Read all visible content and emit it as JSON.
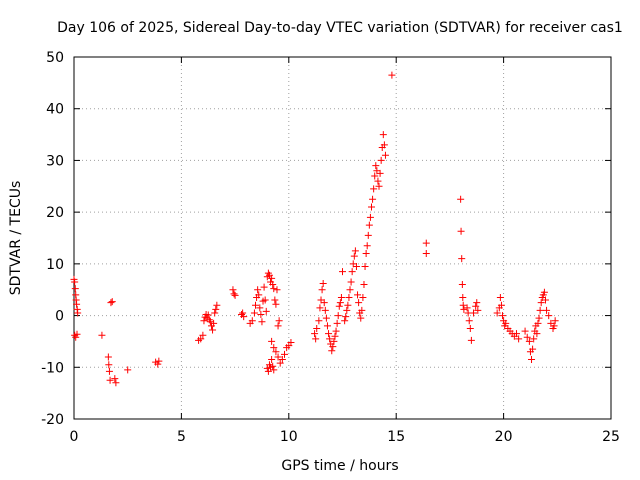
{
  "chart_data": {
    "type": "scatter",
    "title": "Day 106 of 2025, Sidereal Day-to-day VTEC variation (SDTVAR) for receiver cas1",
    "xlabel": "GPS time / hours",
    "ylabel": "SDTVAR / TECUs",
    "xlim": [
      0,
      25
    ],
    "ylim": [
      -20,
      50
    ],
    "grid": true,
    "marker": "plus",
    "color": "#ff0000",
    "x_ticks": [
      {
        "value": 0,
        "label": "0"
      },
      {
        "value": 5,
        "label": "5"
      },
      {
        "value": 10,
        "label": "10"
      },
      {
        "value": 15,
        "label": "15"
      },
      {
        "value": 20,
        "label": "20"
      },
      {
        "value": 25,
        "label": "25"
      }
    ],
    "y_ticks": [
      {
        "value": -20,
        "label": "-20"
      },
      {
        "value": -10,
        "label": "-10"
      },
      {
        "value": 0,
        "label": "0"
      },
      {
        "value": 10,
        "label": "10"
      },
      {
        "value": 20,
        "label": "20"
      },
      {
        "value": 30,
        "label": "30"
      },
      {
        "value": 40,
        "label": "40"
      },
      {
        "value": 50,
        "label": "50"
      }
    ],
    "series": [
      {
        "name": "cas1",
        "points": [
          [
            0.0,
            7.0
          ],
          [
            0.03,
            6.5
          ],
          [
            0.06,
            5.2
          ],
          [
            0.08,
            4.0
          ],
          [
            0.1,
            3.0
          ],
          [
            0.12,
            2.2
          ],
          [
            0.15,
            1.2
          ],
          [
            0.17,
            0.5
          ],
          [
            0.03,
            -3.8
          ],
          [
            0.08,
            -4.2
          ],
          [
            0.14,
            -3.6
          ],
          [
            1.3,
            -3.8
          ],
          [
            1.6,
            -8.0
          ],
          [
            1.62,
            -9.5
          ],
          [
            1.65,
            -10.8
          ],
          [
            1.68,
            -12.5
          ],
          [
            1.72,
            2.5
          ],
          [
            1.78,
            2.7
          ],
          [
            1.9,
            -12.2
          ],
          [
            1.95,
            -13.0
          ],
          [
            2.5,
            -10.5
          ],
          [
            3.8,
            -9.0
          ],
          [
            3.9,
            -9.4
          ],
          [
            3.95,
            -8.8
          ],
          [
            5.8,
            -4.8
          ],
          [
            5.9,
            -4.5
          ],
          [
            6.0,
            -3.8
          ],
          [
            6.05,
            -1.0
          ],
          [
            6.1,
            -0.3
          ],
          [
            6.15,
            0.2
          ],
          [
            6.2,
            -0.5
          ],
          [
            6.25,
            0.1
          ],
          [
            6.3,
            -0.8
          ],
          [
            6.35,
            -1.2
          ],
          [
            6.4,
            -2.0
          ],
          [
            6.45,
            -2.8
          ],
          [
            6.5,
            -1.5
          ],
          [
            6.55,
            0.5
          ],
          [
            6.6,
            1.2
          ],
          [
            6.65,
            2.0
          ],
          [
            7.4,
            5.0
          ],
          [
            7.45,
            4.2
          ],
          [
            7.5,
            3.9
          ],
          [
            7.8,
            0.2
          ],
          [
            7.9,
            -0.2
          ],
          [
            7.85,
            0.5
          ],
          [
            8.2,
            -1.5
          ],
          [
            8.3,
            -1.0
          ],
          [
            8.4,
            0.5
          ],
          [
            8.45,
            2.0
          ],
          [
            8.5,
            3.5
          ],
          [
            8.55,
            5.0
          ],
          [
            8.6,
            4.0
          ],
          [
            8.65,
            1.5
          ],
          [
            8.7,
            0.2
          ],
          [
            8.75,
            -1.2
          ],
          [
            8.8,
            2.8
          ],
          [
            8.85,
            5.5
          ],
          [
            8.9,
            3.0
          ],
          [
            8.95,
            0.8
          ],
          [
            9.0,
            7.5
          ],
          [
            9.05,
            8.2
          ],
          [
            9.1,
            7.8
          ],
          [
            9.15,
            6.5
          ],
          [
            9.2,
            7.2
          ],
          [
            9.25,
            6.0
          ],
          [
            9.3,
            5.2
          ],
          [
            9.35,
            3.0
          ],
          [
            9.4,
            2.2
          ],
          [
            9.45,
            5.0
          ],
          [
            9.0,
            -10.2
          ],
          [
            9.05,
            -10.8
          ],
          [
            9.1,
            -9.5
          ],
          [
            9.15,
            -10.0
          ],
          [
            9.2,
            -8.5
          ],
          [
            9.25,
            -9.8
          ],
          [
            9.3,
            -10.5
          ],
          [
            9.2,
            -5.0
          ],
          [
            9.3,
            -6.2
          ],
          [
            9.4,
            -7.0
          ],
          [
            9.5,
            -8.0
          ],
          [
            9.6,
            -9.2
          ],
          [
            9.7,
            -8.5
          ],
          [
            9.8,
            -7.5
          ],
          [
            9.9,
            -6.2
          ],
          [
            10.0,
            -5.8
          ],
          [
            10.1,
            -5.2
          ],
          [
            9.5,
            -2.0
          ],
          [
            9.55,
            -1.0
          ],
          [
            11.2,
            -3.5
          ],
          [
            11.25,
            -4.5
          ],
          [
            11.3,
            -2.5
          ],
          [
            11.4,
            -1.0
          ],
          [
            11.45,
            1.5
          ],
          [
            11.5,
            3.0
          ],
          [
            11.55,
            5.0
          ],
          [
            11.6,
            6.2
          ],
          [
            11.65,
            2.5
          ],
          [
            11.7,
            1.0
          ],
          [
            11.75,
            -0.5
          ],
          [
            11.8,
            -2.0
          ],
          [
            11.85,
            -3.5
          ],
          [
            11.9,
            -4.5
          ],
          [
            11.95,
            -5.5
          ],
          [
            12.0,
            -6.8
          ],
          [
            12.05,
            -6.0
          ],
          [
            12.1,
            -5.0
          ],
          [
            12.15,
            -4.0
          ],
          [
            12.2,
            -3.0
          ],
          [
            12.25,
            -1.5
          ],
          [
            12.3,
            0.0
          ],
          [
            12.35,
            1.8
          ],
          [
            12.4,
            2.5
          ],
          [
            12.45,
            3.5
          ],
          [
            12.5,
            8.5
          ],
          [
            12.6,
            -1.0
          ],
          [
            12.65,
            -0.2
          ],
          [
            12.7,
            1.0
          ],
          [
            12.75,
            2.0
          ],
          [
            12.8,
            3.5
          ],
          [
            12.85,
            5.0
          ],
          [
            12.9,
            6.5
          ],
          [
            12.95,
            8.5
          ],
          [
            13.0,
            10.0
          ],
          [
            13.05,
            11.5
          ],
          [
            13.1,
            12.5
          ],
          [
            13.15,
            9.5
          ],
          [
            13.2,
            4.0
          ],
          [
            13.25,
            2.5
          ],
          [
            13.3,
            0.5
          ],
          [
            13.35,
            -0.5
          ],
          [
            13.4,
            1.0
          ],
          [
            13.45,
            3.5
          ],
          [
            13.5,
            6.0
          ],
          [
            13.55,
            9.5
          ],
          [
            13.6,
            12.0
          ],
          [
            13.65,
            13.5
          ],
          [
            13.7,
            15.5
          ],
          [
            13.75,
            17.5
          ],
          [
            13.8,
            19.0
          ],
          [
            13.85,
            21.0
          ],
          [
            13.9,
            22.5
          ],
          [
            13.95,
            24.5
          ],
          [
            14.0,
            27.0
          ],
          [
            14.05,
            29.0
          ],
          [
            14.1,
            28.0
          ],
          [
            14.15,
            26.0
          ],
          [
            14.2,
            25.0
          ],
          [
            14.25,
            27.5
          ],
          [
            14.3,
            30.0
          ],
          [
            14.35,
            32.5
          ],
          [
            14.4,
            35.0
          ],
          [
            14.45,
            33.0
          ],
          [
            14.5,
            31.0
          ],
          [
            14.8,
            46.5
          ],
          [
            16.4,
            14.0
          ],
          [
            16.4,
            12.0
          ],
          [
            18.0,
            22.5
          ],
          [
            18.02,
            16.3
          ],
          [
            18.05,
            11.0
          ],
          [
            18.08,
            6.0
          ],
          [
            18.1,
            3.5
          ],
          [
            18.12,
            2.0
          ],
          [
            18.15,
            1.2
          ],
          [
            18.3,
            1.5
          ],
          [
            18.35,
            0.5
          ],
          [
            18.4,
            -1.0
          ],
          [
            18.45,
            -2.5
          ],
          [
            18.5,
            -4.8
          ],
          [
            18.6,
            0.5
          ],
          [
            18.7,
            1.8
          ],
          [
            18.75,
            2.5
          ],
          [
            18.8,
            1.0
          ],
          [
            19.7,
            0.5
          ],
          [
            19.8,
            1.5
          ],
          [
            19.85,
            3.5
          ],
          [
            19.9,
            2.0
          ],
          [
            19.95,
            0.0
          ],
          [
            20.0,
            -1.0
          ],
          [
            20.05,
            -2.0
          ],
          [
            20.1,
            -1.5
          ],
          [
            20.2,
            -2.5
          ],
          [
            20.3,
            -3.0
          ],
          [
            20.4,
            -3.5
          ],
          [
            20.5,
            -4.0
          ],
          [
            20.6,
            -3.5
          ],
          [
            20.7,
            -4.5
          ],
          [
            21.0,
            -3.0
          ],
          [
            21.1,
            -4.2
          ],
          [
            21.2,
            -5.0
          ],
          [
            21.25,
            -7.0
          ],
          [
            21.3,
            -8.5
          ],
          [
            21.35,
            -6.5
          ],
          [
            21.4,
            -4.5
          ],
          [
            21.45,
            -3.0
          ],
          [
            21.5,
            -2.0
          ],
          [
            21.55,
            -3.5
          ],
          [
            21.6,
            -1.5
          ],
          [
            21.65,
            -0.5
          ],
          [
            21.7,
            1.0
          ],
          [
            21.75,
            2.5
          ],
          [
            21.8,
            3.5
          ],
          [
            21.85,
            4.0
          ],
          [
            21.9,
            4.5
          ],
          [
            21.95,
            3.0
          ],
          [
            22.0,
            1.0
          ],
          [
            22.1,
            0.0
          ],
          [
            22.2,
            -1.5
          ],
          [
            22.3,
            -2.5
          ],
          [
            22.35,
            -2.0
          ],
          [
            22.4,
            -1.0
          ]
        ]
      }
    ]
  }
}
